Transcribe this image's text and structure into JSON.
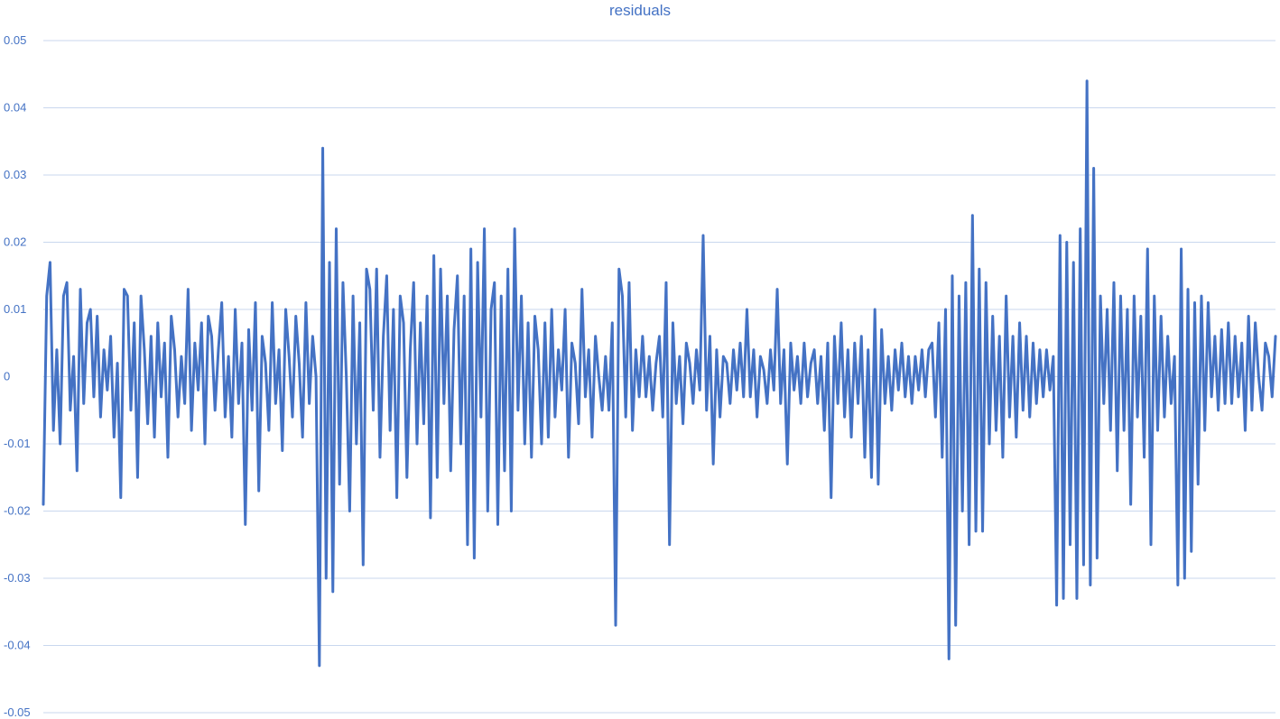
{
  "chart_data": {
    "type": "line",
    "title": "residuals",
    "xlabel": "",
    "ylabel": "",
    "ylim": [
      -0.05,
      0.05
    ],
    "yticks": [
      "0.05",
      "0.04",
      "0.03",
      "0.02",
      "0.01",
      "0",
      "-0.01",
      "-0.02",
      "-0.03",
      "-0.04",
      "-0.05"
    ],
    "ytick_values": [
      0.05,
      0.04,
      0.03,
      0.02,
      0.01,
      0,
      -0.01,
      -0.02,
      -0.03,
      -0.04,
      -0.05
    ],
    "grid": true,
    "legend": "none",
    "colors": {
      "series": "#4472C4",
      "grid": "#C9D7EE",
      "text": "#4472C4"
    },
    "series": [
      {
        "values": [
          -0.019,
          0.012,
          0.017,
          -0.008,
          0.004,
          -0.01,
          0.012,
          0.014,
          -0.005,
          0.003,
          -0.014,
          0.013,
          -0.004,
          0.008,
          0.01,
          -0.003,
          0.009,
          -0.006,
          0.004,
          -0.002,
          0.006,
          -0.009,
          0.002,
          -0.018,
          0.013,
          0.012,
          -0.005,
          0.008,
          -0.015,
          0.012,
          0.004,
          -0.007,
          0.006,
          -0.009,
          0.008,
          -0.003,
          0.005,
          -0.012,
          0.009,
          0.004,
          -0.006,
          0.003,
          -0.004,
          0.013,
          -0.008,
          0.005,
          -0.002,
          0.008,
          -0.01,
          0.009,
          0.006,
          -0.005,
          0.004,
          0.011,
          -0.006,
          0.003,
          -0.009,
          0.01,
          -0.004,
          0.005,
          -0.022,
          0.007,
          -0.005,
          0.011,
          -0.017,
          0.006,
          0.002,
          -0.008,
          0.011,
          -0.004,
          0.004,
          -0.011,
          0.01,
          0.003,
          -0.006,
          0.009,
          0.002,
          -0.009,
          0.011,
          -0.004,
          0.006,
          0.0,
          -0.043,
          0.034,
          -0.03,
          0.017,
          -0.032,
          0.022,
          -0.016,
          0.014,
          0.0,
          -0.02,
          0.012,
          -0.01,
          0.008,
          -0.028,
          0.016,
          0.013,
          -0.005,
          0.016,
          -0.012,
          0.006,
          0.015,
          -0.008,
          0.01,
          -0.018,
          0.012,
          0.008,
          -0.015,
          0.004,
          0.014,
          -0.01,
          0.008,
          -0.007,
          0.012,
          -0.021,
          0.018,
          -0.015,
          0.016,
          -0.004,
          0.012,
          -0.014,
          0.007,
          0.015,
          -0.01,
          0.012,
          -0.025,
          0.019,
          -0.027,
          0.017,
          -0.006,
          0.022,
          -0.02,
          0.01,
          0.014,
          -0.022,
          0.012,
          -0.014,
          0.016,
          -0.02,
          0.022,
          -0.005,
          0.012,
          -0.01,
          0.008,
          -0.012,
          0.009,
          0.004,
          -0.01,
          0.008,
          -0.009,
          0.01,
          -0.006,
          0.004,
          -0.002,
          0.01,
          -0.012,
          0.005,
          0.002,
          -0.007,
          0.013,
          -0.003,
          0.004,
          -0.009,
          0.006,
          0.0,
          -0.005,
          0.003,
          -0.005,
          0.008,
          -0.037,
          0.016,
          0.012,
          -0.006,
          0.014,
          -0.008,
          0.004,
          -0.003,
          0.006,
          -0.003,
          0.003,
          -0.005,
          0.002,
          0.006,
          -0.006,
          0.014,
          -0.025,
          0.008,
          -0.004,
          0.003,
          -0.007,
          0.005,
          0.002,
          -0.004,
          0.004,
          -0.002,
          0.021,
          -0.005,
          0.006,
          -0.013,
          0.004,
          -0.006,
          0.003,
          0.002,
          -0.004,
          0.004,
          -0.002,
          0.005,
          -0.003,
          0.01,
          -0.003,
          0.004,
          -0.006,
          0.003,
          0.001,
          -0.004,
          0.004,
          -0.002,
          0.013,
          -0.004,
          0.004,
          -0.013,
          0.005,
          -0.002,
          0.003,
          -0.004,
          0.005,
          -0.003,
          0.002,
          0.004,
          -0.004,
          0.003,
          -0.008,
          0.005,
          -0.018,
          0.006,
          -0.004,
          0.008,
          -0.006,
          0.004,
          -0.009,
          0.005,
          -0.004,
          0.006,
          -0.012,
          0.004,
          -0.015,
          0.01,
          -0.016,
          0.007,
          -0.004,
          0.003,
          -0.005,
          0.004,
          -0.002,
          0.005,
          -0.003,
          0.003,
          -0.004,
          0.003,
          -0.002,
          0.004,
          -0.003,
          0.004,
          0.005,
          -0.006,
          0.008,
          -0.012,
          0.01,
          -0.042,
          0.015,
          -0.037,
          0.012,
          -0.02,
          0.014,
          -0.025,
          0.024,
          -0.023,
          0.016,
          -0.023,
          0.014,
          -0.01,
          0.009,
          -0.008,
          0.006,
          -0.012,
          0.012,
          -0.006,
          0.006,
          -0.009,
          0.008,
          -0.005,
          0.006,
          -0.006,
          0.005,
          -0.004,
          0.004,
          -0.003,
          0.004,
          -0.002,
          0.003,
          -0.034,
          0.021,
          -0.033,
          0.02,
          -0.025,
          0.017,
          -0.033,
          0.022,
          -0.028,
          0.044,
          -0.031,
          0.031,
          -0.027,
          0.012,
          -0.004,
          0.01,
          -0.008,
          0.014,
          -0.014,
          0.012,
          -0.008,
          0.01,
          -0.019,
          0.012,
          -0.006,
          0.009,
          -0.012,
          0.019,
          -0.025,
          0.012,
          -0.008,
          0.009,
          -0.006,
          0.006,
          -0.004,
          0.003,
          -0.031,
          0.019,
          -0.03,
          0.013,
          -0.026,
          0.011,
          -0.016,
          0.012,
          -0.008,
          0.011,
          -0.003,
          0.006,
          -0.005,
          0.007,
          -0.004,
          0.008,
          -0.004,
          0.006,
          -0.003,
          0.005,
          -0.008,
          0.009,
          -0.005,
          0.008,
          0.0,
          -0.005,
          0.005,
          0.003,
          -0.003,
          0.006
        ]
      }
    ]
  }
}
